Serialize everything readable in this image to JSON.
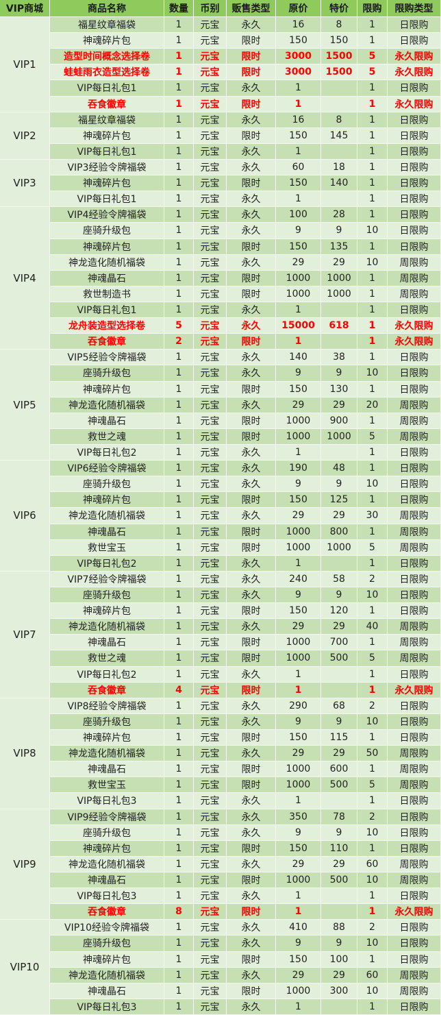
{
  "table": {
    "header": [
      "VIP商城",
      "商品名称",
      "数量",
      "币别",
      "贩售类型",
      "原价",
      "特价",
      "限购",
      "限购类型"
    ],
    "groups": [
      {
        "name": "VIP1",
        "rows": [
          {
            "cells": [
              "福星纹章福袋",
              1,
              "元宝",
              "永久",
              16,
              8,
              1,
              "日限购"
            ]
          },
          {
            "cells": [
              "神魂碎片包",
              1,
              "元宝",
              "限时",
              150,
              150,
              1,
              "日限购"
            ]
          },
          {
            "cells": [
              "造型时间概念选择卷",
              1,
              "元宝",
              "限时",
              3000,
              1500,
              5,
              "永久限购"
            ],
            "emphasis": true
          },
          {
            "cells": [
              "蛙蛙雨衣造型选择卷",
              1,
              "元宝",
              "限时",
              3000,
              1500,
              5,
              "永久限购"
            ],
            "emphasis": true
          },
          {
            "cells": [
              "VIP每日礼包1",
              1,
              "元宝",
              "永久",
              1,
              null,
              1,
              "日限购"
            ]
          },
          {
            "cells": [
              "吞食徽章",
              1,
              "元宝",
              "限时",
              1,
              null,
              1,
              "永久限购"
            ],
            "emphasis": true
          }
        ]
      },
      {
        "name": "VIP2",
        "rows": [
          {
            "cells": [
              "福星纹章福袋",
              1,
              "元宝",
              "永久",
              16,
              8,
              1,
              "日限购"
            ]
          },
          {
            "cells": [
              "神魂碎片包",
              1,
              "元宝",
              "限时",
              150,
              145,
              1,
              "日限购"
            ]
          },
          {
            "cells": [
              "VIP每日礼包1",
              1,
              "元宝",
              "永久",
              1,
              null,
              1,
              "日限购"
            ]
          }
        ]
      },
      {
        "name": "VIP3",
        "rows": [
          {
            "cells": [
              "VIP3经验令牌福袋",
              1,
              "元宝",
              "永久",
              60,
              18,
              1,
              "日限购"
            ]
          },
          {
            "cells": [
              "神魂碎片包",
              1,
              "元宝",
              "限时",
              150,
              140,
              1,
              "日限购"
            ]
          },
          {
            "cells": [
              "VIP每日礼包1",
              1,
              "元宝",
              "永久",
              1,
              null,
              1,
              "日限购"
            ]
          }
        ]
      },
      {
        "name": "VIP4",
        "rows": [
          {
            "cells": [
              "VIP4经验令牌福袋",
              1,
              "元宝",
              "永久",
              100,
              28,
              1,
              "日限购"
            ]
          },
          {
            "cells": [
              "座骑升级包",
              1,
              "元宝",
              "永久",
              9,
              9,
              10,
              "日限购"
            ]
          },
          {
            "cells": [
              "神魂碎片包",
              1,
              "元宝",
              "限时",
              150,
              135,
              1,
              "日限购"
            ]
          },
          {
            "cells": [
              "神龙造化随机福袋",
              1,
              "元宝",
              "永久",
              29,
              29,
              10,
              "周限购"
            ]
          },
          {
            "cells": [
              "神魂晶石",
              1,
              "元宝",
              "限时",
              1000,
              1000,
              1,
              "周限购"
            ]
          },
          {
            "cells": [
              "救世制造书",
              1,
              "元宝",
              "限时",
              1000,
              1000,
              1,
              "周限购"
            ]
          },
          {
            "cells": [
              "VIP每日礼包1",
              1,
              "元宝",
              "永久",
              1,
              null,
              1,
              "日限购"
            ]
          },
          {
            "cells": [
              "龙舟装造型选择卷",
              5,
              "元宝",
              "永久",
              15000,
              618,
              1,
              "永久限购"
            ],
            "emphasis": true
          },
          {
            "cells": [
              "吞食徽章",
              2,
              "元宝",
              "限时",
              1,
              null,
              1,
              "永久限购"
            ],
            "emphasis": true
          }
        ]
      },
      {
        "name": "VIP5",
        "rows": [
          {
            "cells": [
              "VIP5经验令牌福袋",
              1,
              "元宝",
              "永久",
              140,
              38,
              1,
              "日限购"
            ]
          },
          {
            "cells": [
              "座骑升级包",
              1,
              "元宝",
              "永久",
              9,
              9,
              10,
              "日限购"
            ]
          },
          {
            "cells": [
              "神魂碎片包",
              1,
              "元宝",
              "限时",
              150,
              130,
              1,
              "日限购"
            ]
          },
          {
            "cells": [
              "神龙造化随机福袋",
              1,
              "元宝",
              "永久",
              29,
              29,
              20,
              "周限购"
            ]
          },
          {
            "cells": [
              "神魂晶石",
              1,
              "元宝",
              "限时",
              1000,
              900,
              1,
              "周限购"
            ]
          },
          {
            "cells": [
              "救世之魂",
              1,
              "元宝",
              "限时",
              1000,
              1000,
              5,
              "周限购"
            ]
          },
          {
            "cells": [
              "VIP每日礼包2",
              1,
              "元宝",
              "永久",
              1,
              null,
              1,
              "日限购"
            ]
          }
        ]
      },
      {
        "name": "VIP6",
        "rows": [
          {
            "cells": [
              "VIP6经验令牌福袋",
              1,
              "元宝",
              "永久",
              190,
              48,
              1,
              "日限购"
            ]
          },
          {
            "cells": [
              "座骑升级包",
              1,
              "元宝",
              "永久",
              9,
              9,
              10,
              "日限购"
            ]
          },
          {
            "cells": [
              "神魂碎片包",
              1,
              "元宝",
              "限时",
              150,
              125,
              1,
              "日限购"
            ]
          },
          {
            "cells": [
              "神龙造化随机福袋",
              1,
              "元宝",
              "永久",
              29,
              29,
              30,
              "周限购"
            ]
          },
          {
            "cells": [
              "神魂晶石",
              1,
              "元宝",
              "限时",
              1000,
              800,
              1,
              "周限购"
            ]
          },
          {
            "cells": [
              "救世宝玉",
              1,
              "元宝",
              "限时",
              1000,
              1000,
              5,
              "周限购"
            ]
          },
          {
            "cells": [
              "VIP每日礼包2",
              1,
              "元宝",
              "永久",
              1,
              null,
              1,
              "日限购"
            ]
          }
        ]
      },
      {
        "name": "VIP7",
        "rows": [
          {
            "cells": [
              "VIP7经验令牌福袋",
              1,
              "元宝",
              "永久",
              240,
              58,
              2,
              "日限购"
            ]
          },
          {
            "cells": [
              "座骑升级包",
              1,
              "元宝",
              "永久",
              9,
              9,
              10,
              "日限购"
            ]
          },
          {
            "cells": [
              "神魂碎片包",
              1,
              "元宝",
              "限时",
              150,
              120,
              1,
              "日限购"
            ]
          },
          {
            "cells": [
              "神龙造化随机福袋",
              1,
              "元宝",
              "永久",
              29,
              29,
              40,
              "周限购"
            ]
          },
          {
            "cells": [
              "神魂晶石",
              1,
              "元宝",
              "限时",
              1000,
              700,
              1,
              "周限购"
            ]
          },
          {
            "cells": [
              "救世之魂",
              1,
              "元宝",
              "限时",
              1000,
              500,
              5,
              "周限购"
            ]
          },
          {
            "cells": [
              "VIP每日礼包2",
              1,
              "元宝",
              "永久",
              1,
              null,
              1,
              "日限购"
            ]
          },
          {
            "cells": [
              "吞食徽章",
              4,
              "元宝",
              "限时",
              1,
              null,
              1,
              "永久限购"
            ],
            "emphasis": true
          }
        ]
      },
      {
        "name": "VIP8",
        "rows": [
          {
            "cells": [
              "VIP8经验令牌福袋",
              1,
              "元宝",
              "永久",
              290,
              68,
              2,
              "日限购"
            ]
          },
          {
            "cells": [
              "座骑升级包",
              1,
              "元宝",
              "永久",
              9,
              9,
              10,
              "日限购"
            ]
          },
          {
            "cells": [
              "神魂碎片包",
              1,
              "元宝",
              "限时",
              150,
              115,
              1,
              "日限购"
            ]
          },
          {
            "cells": [
              "神龙造化随机福袋",
              1,
              "元宝",
              "永久",
              29,
              29,
              50,
              "周限购"
            ]
          },
          {
            "cells": [
              "神魂晶石",
              1,
              "元宝",
              "限时",
              1000,
              600,
              1,
              "周限购"
            ]
          },
          {
            "cells": [
              "救世宝玉",
              1,
              "元宝",
              "限时",
              1000,
              500,
              5,
              "周限购"
            ]
          },
          {
            "cells": [
              "VIP每日礼包3",
              1,
              "元宝",
              "永久",
              1,
              null,
              1,
              "日限购"
            ]
          }
        ]
      },
      {
        "name": "VIP9",
        "rows": [
          {
            "cells": [
              "VIP9经验令牌福袋",
              1,
              "元宝",
              "永久",
              350,
              78,
              2,
              "日限购"
            ]
          },
          {
            "cells": [
              "座骑升级包",
              1,
              "元宝",
              "永久",
              9,
              9,
              10,
              "日限购"
            ]
          },
          {
            "cells": [
              "神魂碎片包",
              1,
              "元宝",
              "限时",
              150,
              110,
              1,
              "日限购"
            ]
          },
          {
            "cells": [
              "神龙造化随机福袋",
              1,
              "元宝",
              "永久",
              29,
              29,
              60,
              "周限购"
            ]
          },
          {
            "cells": [
              "神魂晶石",
              1,
              "元宝",
              "限时",
              1000,
              500,
              10,
              "周限购"
            ]
          },
          {
            "cells": [
              "VIP每日礼包3",
              1,
              "元宝",
              "永久",
              1,
              null,
              1,
              "日限购"
            ]
          },
          {
            "cells": [
              "吞食徽章",
              8,
              "元宝",
              "限时",
              1,
              null,
              1,
              "永久限购"
            ],
            "emphasis": true
          }
        ]
      },
      {
        "name": "VIP10",
        "rows": [
          {
            "cells": [
              "VIP10经验令牌福袋",
              1,
              "元宝",
              "永久",
              410,
              88,
              2,
              "日限购"
            ]
          },
          {
            "cells": [
              "座骑升级包",
              1,
              "元宝",
              "永久",
              9,
              9,
              10,
              "日限购"
            ]
          },
          {
            "cells": [
              "神魂碎片包",
              1,
              "元宝",
              "限时",
              150,
              100,
              1,
              "日限购"
            ]
          },
          {
            "cells": [
              "神龙造化随机福袋",
              1,
              "元宝",
              "永久",
              29,
              29,
              60,
              "周限购"
            ]
          },
          {
            "cells": [
              "神魂晶石",
              1,
              "元宝",
              "限时",
              1000,
              300,
              10,
              "周限购"
            ]
          },
          {
            "cells": [
              "VIP每日礼包3",
              1,
              "元宝",
              "永久",
              1,
              null,
              1,
              "日限购"
            ]
          }
        ]
      }
    ]
  }
}
